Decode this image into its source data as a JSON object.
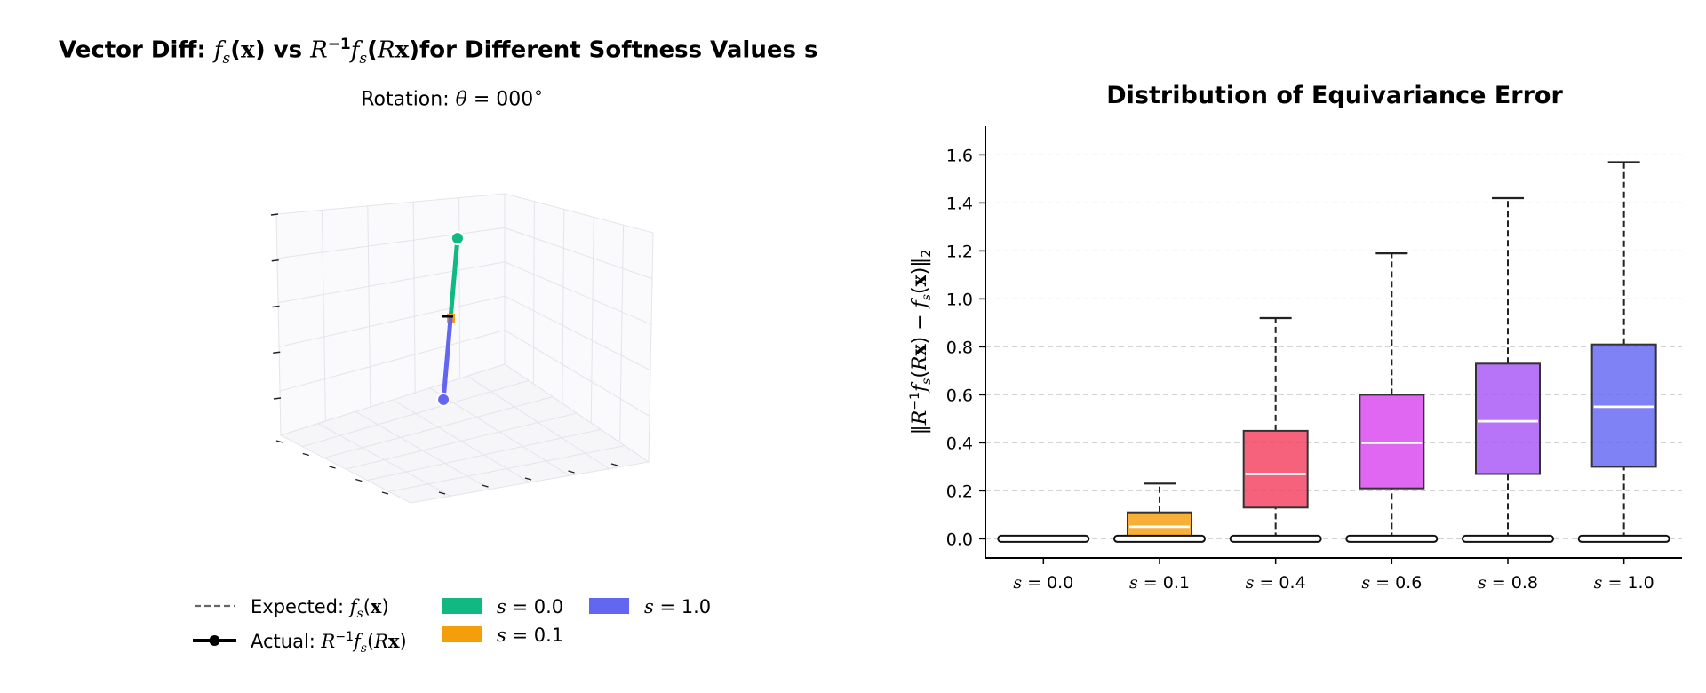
{
  "left_panel": {
    "title_prefix": "Vector Diff: ",
    "title_suffix": "for Different Softness Values s",
    "subtitle_label": "Rotation: ",
    "subtitle_value": "000",
    "legend": {
      "expected_label": "Expected: ",
      "actual_label": "Actual: ",
      "series": [
        {
          "name": "s = 0.0",
          "color": "#10b981"
        },
        {
          "name": "s = 0.1",
          "color": "#f59e0b"
        },
        {
          "name": "s = 1.0",
          "color": "#6366f1"
        }
      ]
    }
  },
  "chart_data": [
    {
      "type": "line",
      "projection": "3d",
      "description_of_marks": "3D vector plot; origin marker in center, vectors per softness",
      "grid": true,
      "tick_labels_visible": false,
      "series": [
        {
          "name": "s = 0.0",
          "color": "#10b981",
          "start": [
            0,
            0,
            0
          ],
          "end": [
            0,
            0.2,
            1.0
          ]
        },
        {
          "name": "s = 0.1",
          "color": "#f59e0b",
          "start": [
            0,
            0,
            0
          ],
          "end": [
            0,
            0,
            0
          ]
        },
        {
          "name": "s = 1.0",
          "color": "#6366f1",
          "start": [
            0,
            0,
            0
          ],
          "end": [
            0,
            -0.2,
            -1.0
          ]
        }
      ]
    },
    {
      "type": "box",
      "title": "Distribution of Equivariance Error",
      "ylabel": "‖R⁻¹fₛ(Rx) − fₛ(x)‖₂",
      "ylim": [
        -0.08,
        1.72
      ],
      "yticks": [
        0.0,
        0.2,
        0.4,
        0.6,
        0.8,
        1.0,
        1.2,
        1.4,
        1.6
      ],
      "grid": "y-dashed",
      "categories": [
        "s = 0.0",
        "s = 0.1",
        "s = 0.4",
        "s = 0.6",
        "s = 0.8",
        "s = 1.0"
      ],
      "boxes": [
        {
          "label": "s = 0.0",
          "min": 0.0,
          "q1": 0.0,
          "median": 0.0,
          "q3": 0.0,
          "max": 0.0,
          "color": "#ffffff"
        },
        {
          "label": "s = 0.1",
          "min": 0.0,
          "q1": 0.01,
          "median": 0.05,
          "q3": 0.11,
          "max": 0.23,
          "color": "#f59e0b"
        },
        {
          "label": "s = 0.4",
          "min": 0.0,
          "q1": 0.13,
          "median": 0.27,
          "q3": 0.45,
          "max": 0.92,
          "color": "#f43f5e"
        },
        {
          "label": "s = 0.6",
          "min": 0.0,
          "q1": 0.21,
          "median": 0.4,
          "q3": 0.6,
          "max": 1.19,
          "color": "#d946ef"
        },
        {
          "label": "s = 0.8",
          "min": 0.0,
          "q1": 0.27,
          "median": 0.49,
          "q3": 0.73,
          "max": 1.42,
          "color": "#a855f7"
        },
        {
          "label": "s = 1.0",
          "min": 0.0,
          "q1": 0.3,
          "median": 0.55,
          "q3": 0.81,
          "max": 1.57,
          "color": "#6366f1"
        }
      ]
    }
  ]
}
